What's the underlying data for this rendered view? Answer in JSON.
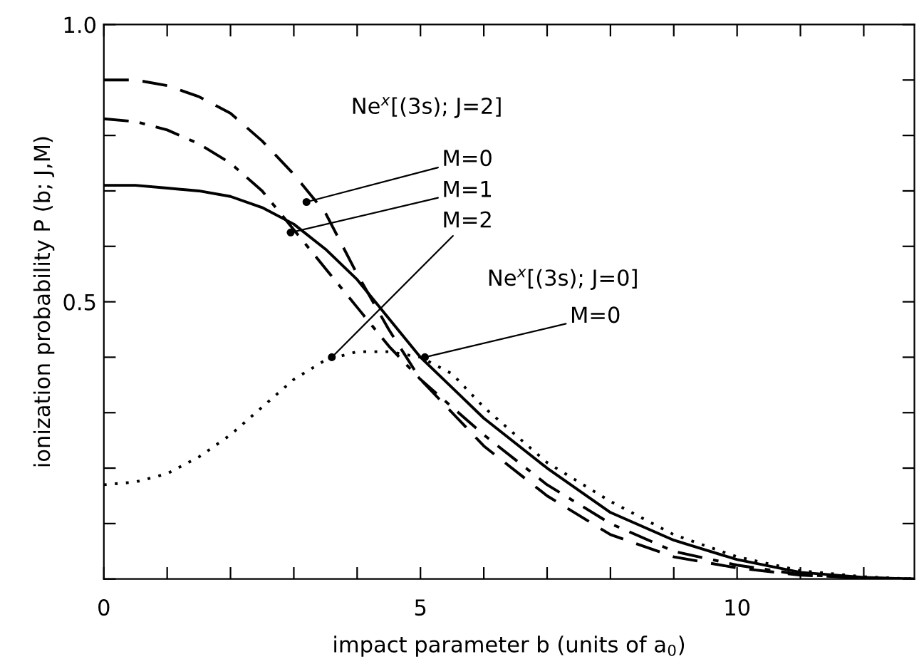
{
  "chart_data": {
    "type": "line",
    "xlabel": "impact parameter b (units of a$_{0}$)",
    "ylabel": "ionization probability P (b; J,M)",
    "xlim": [
      0,
      12.8
    ],
    "ylim": [
      0,
      1.0
    ],
    "xticks": [
      0,
      {
        "value": 1,
        "label": null
      },
      {
        "value": 2,
        "label": null
      },
      {
        "value": 3,
        "label": null
      },
      {
        "value": 4,
        "label": null
      },
      5,
      {
        "value": 6,
        "label": null
      },
      {
        "value": 7,
        "label": null
      },
      {
        "value": 8,
        "label": null
      },
      {
        "value": 9,
        "label": null
      },
      10,
      {
        "value": 11,
        "label": null
      },
      {
        "value": 12,
        "label": null
      }
    ],
    "yticks": [
      {
        "value": 0,
        "label": null
      },
      {
        "value": 0.1,
        "label": null
      },
      {
        "value": 0.2,
        "label": null
      },
      {
        "value": 0.3,
        "label": null
      },
      {
        "value": 0.4,
        "label": null
      },
      0.5,
      {
        "value": 0.6,
        "label": null
      },
      {
        "value": 0.7,
        "label": null
      },
      {
        "value": 0.8,
        "label": null
      },
      {
        "value": 0.9,
        "label": null
      },
      {
        "value": 1.0,
        "label": "1.0"
      }
    ],
    "grid": false,
    "legend": false,
    "marker": "none",
    "x": [
      0,
      0.5,
      1,
      1.5,
      2,
      2.5,
      3,
      3.5,
      4,
      4.5,
      5,
      5.5,
      6,
      7,
      8,
      9,
      10,
      11,
      12,
      12.8
    ],
    "series": [
      {
        "color": "#000000",
        "line_style": "solid",
        "values": [
          0.71,
          0.71,
          0.705,
          0.7,
          0.69,
          0.67,
          0.64,
          0.595,
          0.54,
          0.47,
          0.4,
          0.345,
          0.29,
          0.2,
          0.12,
          0.07,
          0.035,
          0.012,
          0.003,
          0.0
        ]
      },
      {
        "color": "#000000",
        "line_style": "dashdot",
        "values": [
          0.83,
          0.825,
          0.81,
          0.785,
          0.75,
          0.7,
          0.63,
          0.56,
          0.49,
          0.42,
          0.36,
          0.31,
          0.26,
          0.17,
          0.1,
          0.05,
          0.025,
          0.008,
          0.002,
          0.0
        ]
      },
      {
        "color": "#000000",
        "line_style": "dashed",
        "values": [
          0.9,
          0.9,
          0.89,
          0.87,
          0.84,
          0.79,
          0.73,
          0.66,
          0.55,
          0.45,
          0.36,
          0.3,
          0.24,
          0.15,
          0.08,
          0.04,
          0.02,
          0.007,
          0.002,
          0.0
        ]
      },
      {
        "color": "#000000",
        "line_style": "dotted",
        "values": [
          0.17,
          0.175,
          0.19,
          0.22,
          0.26,
          0.31,
          0.36,
          0.395,
          0.41,
          0.41,
          0.4,
          0.37,
          0.31,
          0.21,
          0.14,
          0.08,
          0.04,
          0.015,
          0.004,
          0.0
        ]
      }
    ],
    "annotations": [
      "Ne$^{x}$[(3s); J=2]",
      {
        "text": "M=0",
        "x": 3.2,
        "y": 0.68
      },
      {
        "text": "M=1",
        "x": 2.95,
        "y": 0.625
      },
      {
        "text": "M=2",
        "x": 3.6,
        "y": 0.4
      },
      "Ne$^{x}$[(3s); J=0]",
      {
        "text": "M=0",
        "x": 5.07,
        "y": 0.4
      }
    ]
  }
}
